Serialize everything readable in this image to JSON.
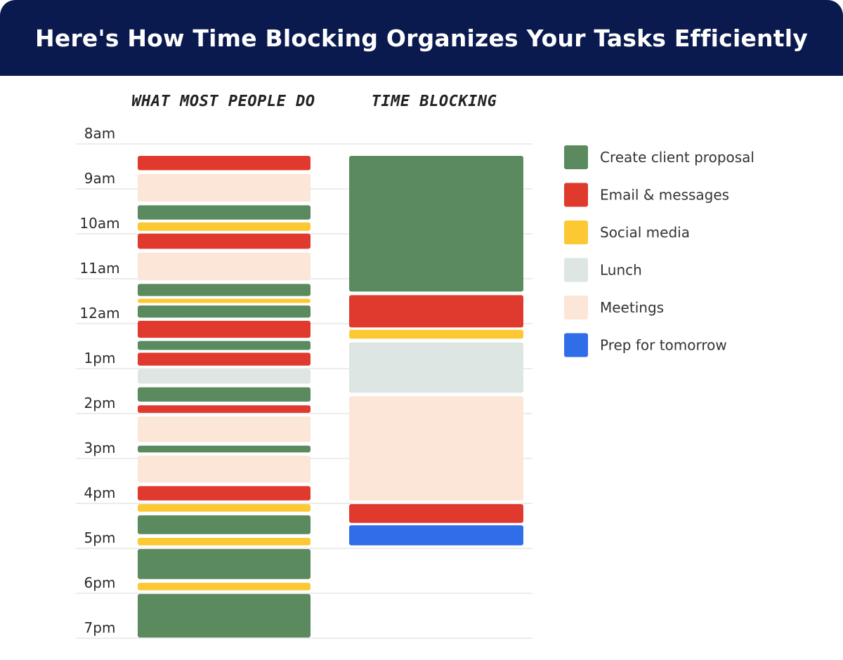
{
  "title": "Here's How Time Blocking Organizes Your Tasks Efficiently",
  "chart_data": {
    "type": "bar",
    "columns": [
      "WHAT MOST PEOPLE DO",
      "TIME BLOCKING"
    ],
    "y_ticks": [
      "8am",
      "9am",
      "10am",
      "11am",
      "12am",
      "1pm",
      "2pm",
      "3pm",
      "4pm",
      "5pm",
      "6pm",
      "7pm"
    ],
    "y_range_hours": [
      8,
      20
    ],
    "grid": true,
    "legend_position": "right",
    "legend": [
      {
        "key": "proposal",
        "label": "Create client proposal",
        "color": "#5a8a5e"
      },
      {
        "key": "email",
        "label": "Email & messages",
        "color": "#e03a2e"
      },
      {
        "key": "social",
        "label": "Social media",
        "color": "#fcc934"
      },
      {
        "key": "lunch",
        "label": "Lunch",
        "color": "#dde6e2"
      },
      {
        "key": "meetings",
        "label": "Meetings",
        "color": "#fbe6d7"
      },
      {
        "key": "prep",
        "label": "Prep for tomorrow",
        "color": "#2f6ee8"
      }
    ],
    "series": [
      {
        "name": "WHAT MOST PEOPLE DO",
        "blocks": [
          {
            "task": "email",
            "start": 8.25,
            "end": 8.6
          },
          {
            "task": "meetings",
            "start": 8.65,
            "end": 9.3
          },
          {
            "task": "proposal",
            "start": 9.35,
            "end": 9.7
          },
          {
            "task": "social",
            "start": 9.73,
            "end": 9.95
          },
          {
            "task": "email",
            "start": 9.98,
            "end": 10.35
          },
          {
            "task": "meetings",
            "start": 10.4,
            "end": 11.05
          },
          {
            "task": "proposal",
            "start": 11.1,
            "end": 11.4
          },
          {
            "task": "social",
            "start": 11.43,
            "end": 11.55
          },
          {
            "task": "proposal",
            "start": 11.58,
            "end": 11.88
          },
          {
            "task": "email",
            "start": 11.92,
            "end": 12.33
          },
          {
            "task": "proposal",
            "start": 12.37,
            "end": 12.6
          },
          {
            "task": "email",
            "start": 12.63,
            "end": 12.95
          },
          {
            "task": "lunch",
            "start": 13.0,
            "end": 13.35
          },
          {
            "task": "proposal",
            "start": 13.4,
            "end": 13.75
          },
          {
            "task": "email",
            "start": 13.8,
            "end": 14.0
          },
          {
            "task": "meetings",
            "start": 14.05,
            "end": 14.65
          },
          {
            "task": "proposal",
            "start": 14.7,
            "end": 14.88
          },
          {
            "task": "meetings",
            "start": 14.92,
            "end": 15.55
          },
          {
            "task": "email",
            "start": 15.6,
            "end": 15.95
          },
          {
            "task": "social",
            "start": 16.0,
            "end": 16.2
          },
          {
            "task": "proposal",
            "start": 16.25,
            "end": 16.7
          },
          {
            "task": "social",
            "start": 16.75,
            "end": 16.95
          },
          {
            "task": "proposal",
            "start": 17.0,
            "end": 17.7
          },
          {
            "task": "social",
            "start": 17.75,
            "end": 17.95
          },
          {
            "task": "proposal",
            "start": 18.0,
            "end": 19.0
          }
        ]
      },
      {
        "name": "TIME BLOCKING",
        "blocks": [
          {
            "task": "proposal",
            "start": 8.25,
            "end": 11.3
          },
          {
            "task": "email",
            "start": 11.35,
            "end": 12.1
          },
          {
            "task": "social",
            "start": 12.12,
            "end": 12.35
          },
          {
            "task": "lunch",
            "start": 12.4,
            "end": 13.55
          },
          {
            "task": "meetings",
            "start": 13.6,
            "end": 15.95
          },
          {
            "task": "email",
            "start": 16.0,
            "end": 16.45
          },
          {
            "task": "prep",
            "start": 16.47,
            "end": 16.95
          }
        ]
      }
    ]
  }
}
